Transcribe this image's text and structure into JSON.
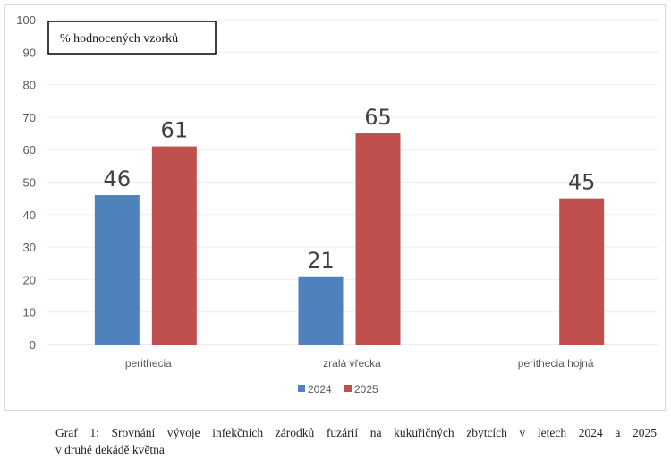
{
  "chart_data": {
    "type": "bar",
    "title": "",
    "ylabel_box": "% hodnocených vzorků",
    "categories": [
      "perithecia",
      "zralá vřecka",
      "perithecia hojná"
    ],
    "series": [
      {
        "name": "2024",
        "color": "#4f81bd",
        "values": [
          46,
          21,
          null
        ]
      },
      {
        "name": "2025",
        "color": "#c0504d",
        "values": [
          61,
          65,
          45
        ]
      }
    ],
    "ylim": [
      0,
      100
    ],
    "yticks": [
      0,
      10,
      20,
      30,
      40,
      50,
      60,
      70,
      80,
      90,
      100
    ],
    "grid": true,
    "legend": "bottom"
  },
  "caption": {
    "line1": "Graf 1: Srovnání vývoje infekčních zárodků fuzárií na kukuřičných zbytcích v letech 2024 a 2025",
    "line2": "v druhé dekádě května"
  }
}
